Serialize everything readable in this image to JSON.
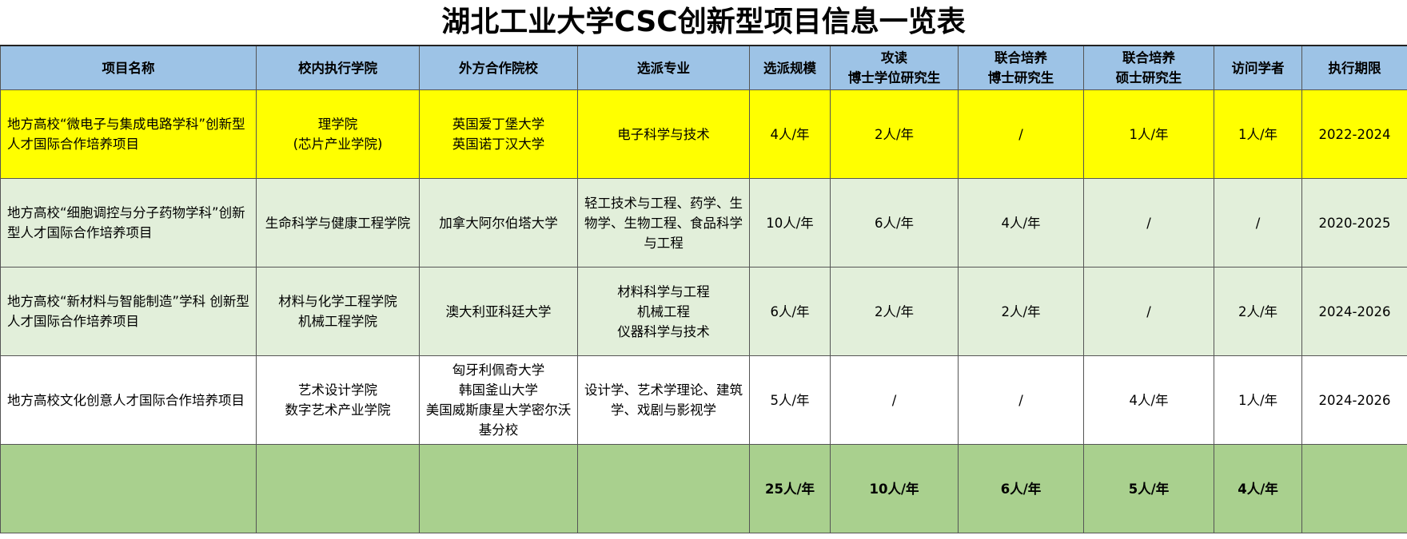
{
  "title": "湖北工业大学CSC创新型项目信息一览表",
  "headers": [
    "项目名称",
    "校内执行学院",
    "外方合作院校",
    "选派专业",
    "选派规模",
    "攻读\n博士学位研究生",
    "联合培养\n博士研究生",
    "联合培养\n硕士研究生",
    "访问学者",
    "执行期限"
  ],
  "rows": [
    [
      "地方高校“微电子与集成电路学科”创新型人才国际合作培养项目",
      "理学院\n(芯片产业学院)",
      "英国爱丁堡大学\n英国诺丁汉大学",
      "电子科学与技术",
      "4人/年",
      "2人/年",
      "/",
      "1人/年",
      "1人/年",
      "2022-2024"
    ],
    [
      "地方高校“细胞调控与分子药物学科”创新型人才国际合作培养项目",
      "生命科学与健康工程学院",
      "加拿大阿尔伯塔大学",
      "轻工技术与工程、药学、生物学、生物工程、食品科学与工程",
      "10人/年",
      "6人/年",
      "4人/年",
      "/",
      "/",
      "2020-2025"
    ],
    [
      "地方高校“新材料与智能制造”学科 创新型人才国际合作培养项目",
      "材料与化学工程学院\n机械工程学院",
      "澳大利亚科廷大学",
      "材料科学与工程\n机械工程\n仪器科学与技术",
      "6人/年",
      "2人/年",
      "2人/年",
      "/",
      "2人/年",
      "2024-2026"
    ],
    [
      "地方高校文化创意人才国际合作培养项目",
      "艺术设计学院\n数字艺术产业学院",
      "匈牙利佩奇大学\n韩国釜山大学\n美国威斯康星大学密尔沃基分校",
      "设计学、艺术学理论、建筑学、戏剧与影视学",
      "5人/年",
      "/",
      "/",
      "4人/年",
      "1人/年",
      "2024-2026"
    ]
  ],
  "total": [
    "",
    "",
    "",
    "",
    "25人/年",
    "10人/年",
    "6人/年",
    "5人/年",
    "4人/年",
    ""
  ],
  "colors": {
    "header": "#9dc3e6",
    "highlight": "#ffff00",
    "green_light": "#e2efda",
    "total": "#a9d08e"
  }
}
